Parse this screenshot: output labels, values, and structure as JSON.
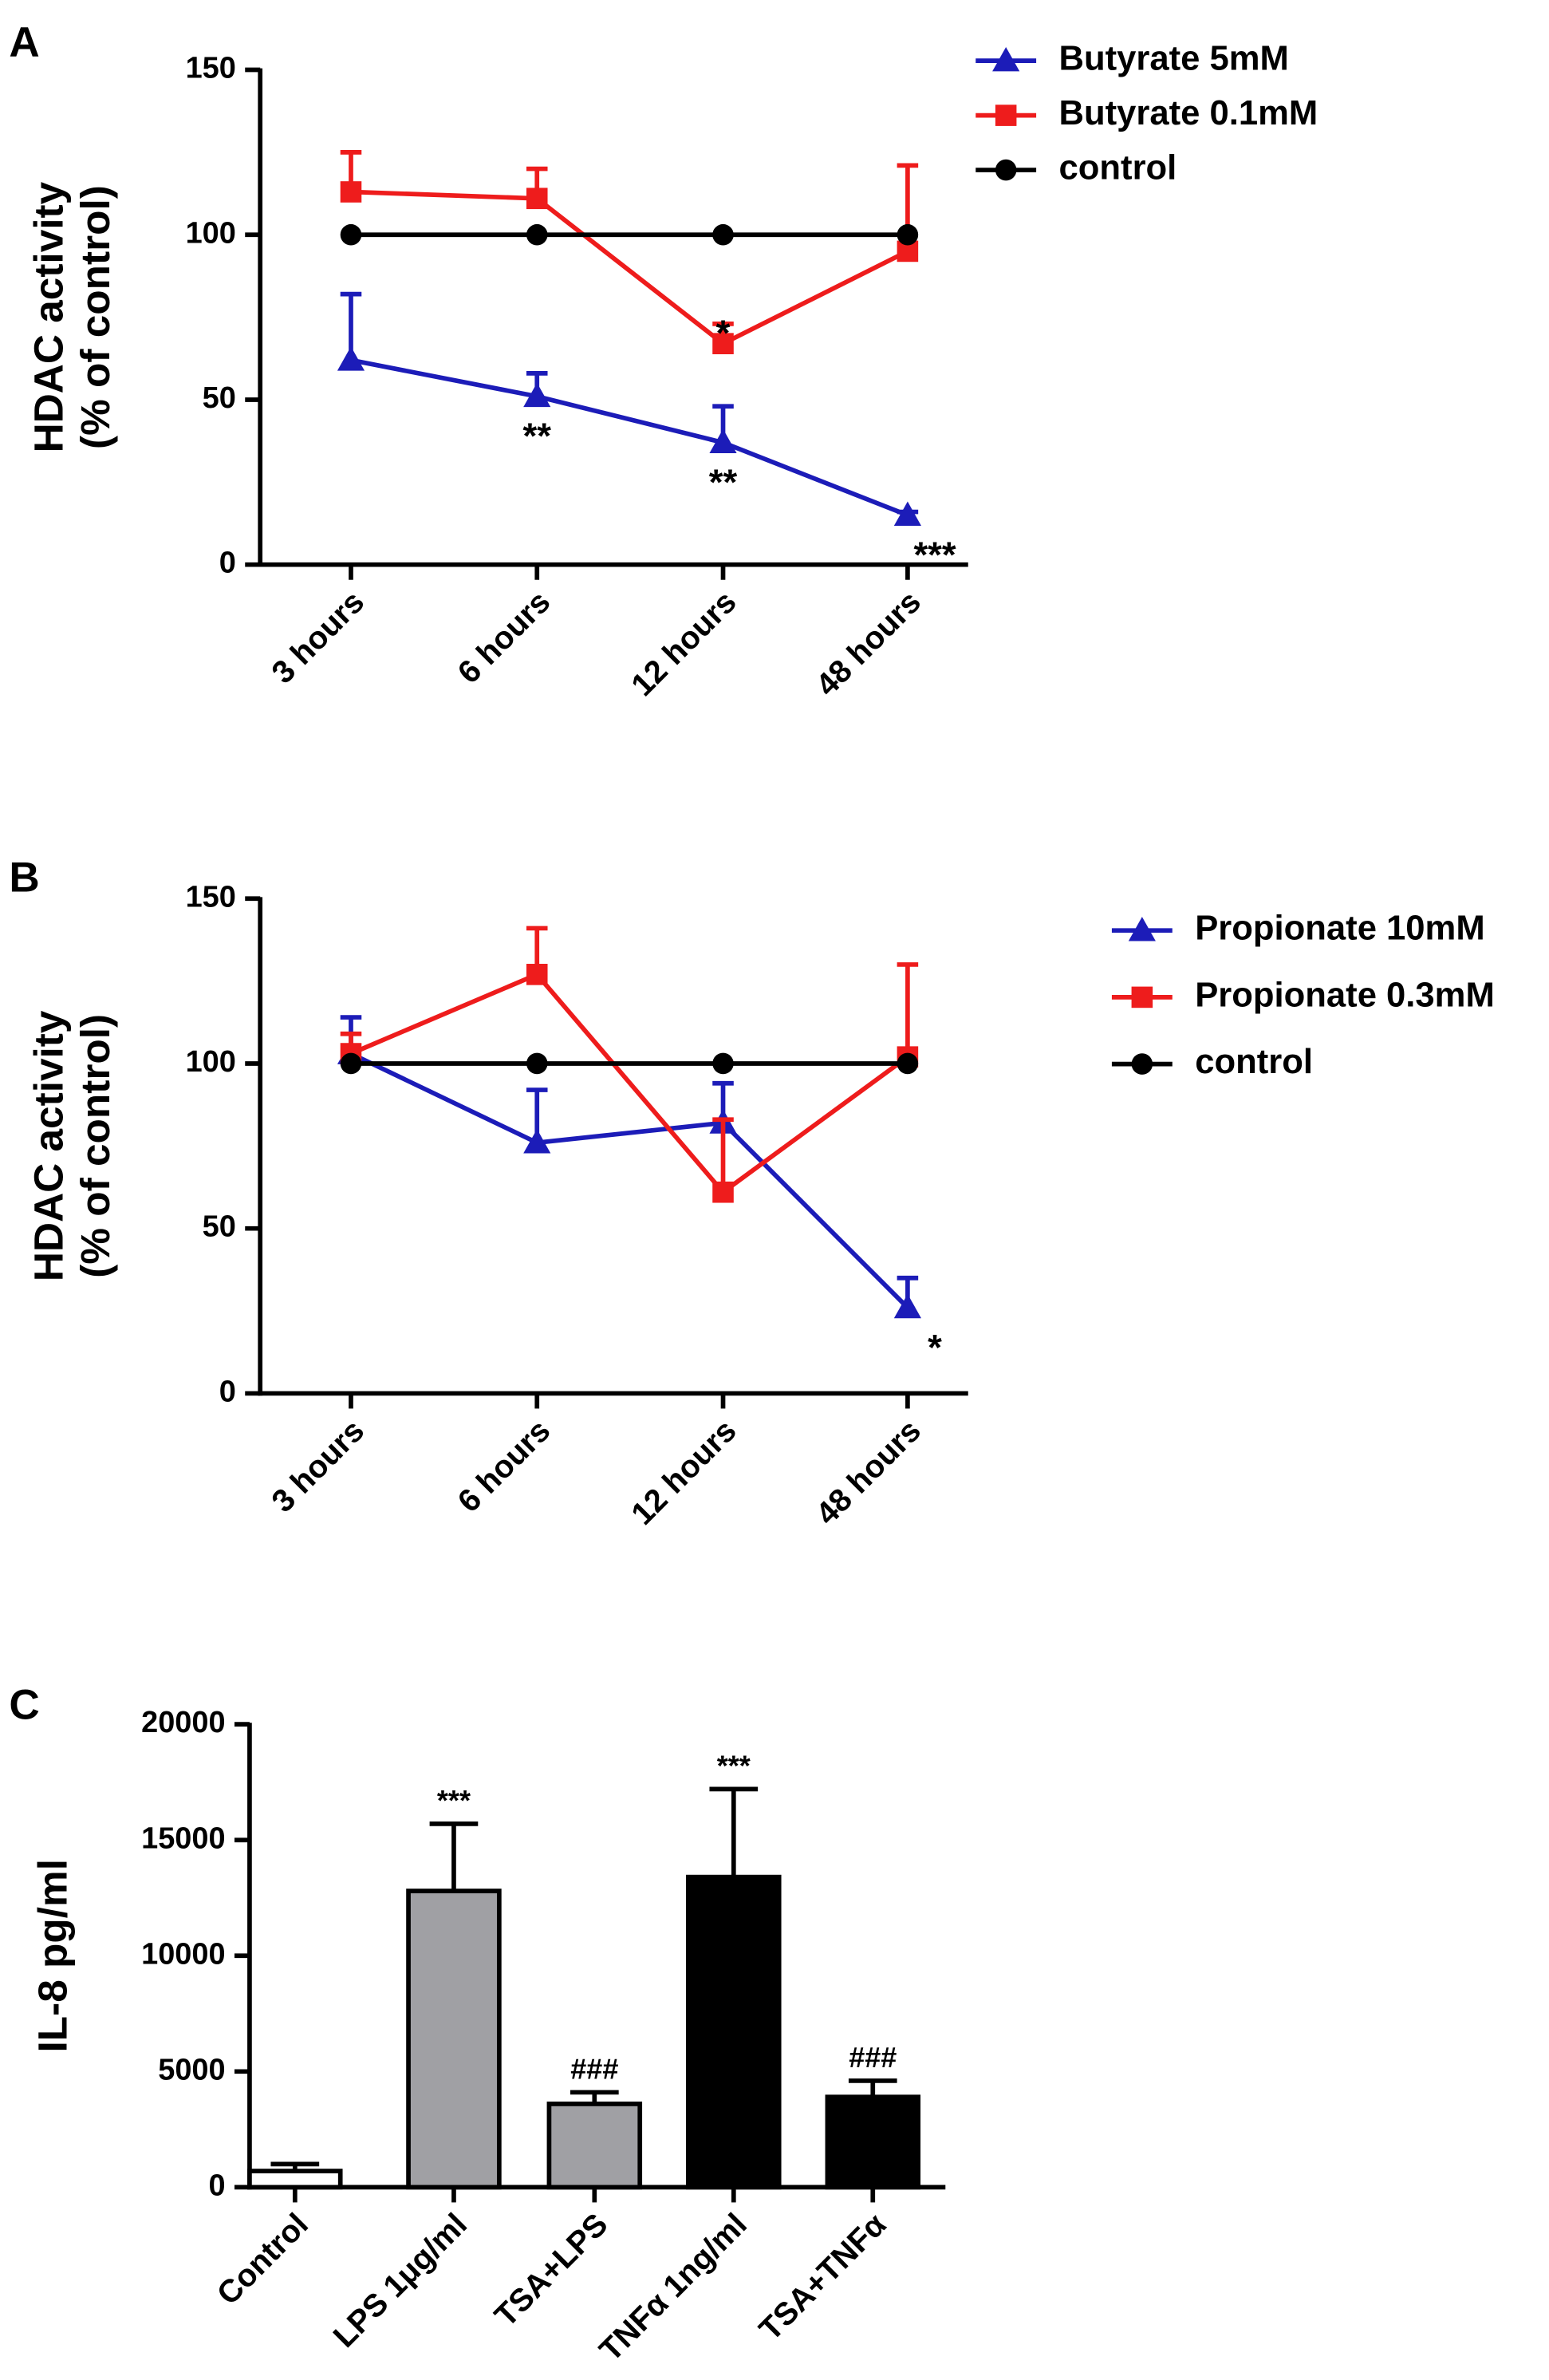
{
  "chart_data": [
    {
      "type": "line",
      "panel_label": "A",
      "ylabel": "HDAC activity\n(% of control)",
      "categories": [
        "3 hours",
        "6 hours",
        "12 hours",
        "48 hours"
      ],
      "ylim": [
        0,
        150
      ],
      "yticks": [
        0,
        50,
        100,
        150
      ],
      "series": [
        {
          "name": "Butyrate 5mM",
          "color": "#1c1cb8",
          "marker": "triangle",
          "values": [
            62,
            51,
            37,
            15
          ],
          "errors": [
            20,
            7,
            11,
            1
          ],
          "significance": [
            null,
            "**",
            "**",
            "***"
          ]
        },
        {
          "name": "Butyrate 0.1mM",
          "color": "#ee1c1c",
          "marker": "square",
          "values": [
            113,
            111,
            67,
            95
          ],
          "errors": [
            12,
            9,
            6,
            26
          ],
          "significance": [
            null,
            null,
            "*",
            null
          ]
        },
        {
          "name": "control",
          "color": "#000000",
          "marker": "circle",
          "values": [
            100,
            100,
            100,
            100
          ],
          "errors": [
            null,
            null,
            null,
            null
          ],
          "significance": [
            null,
            null,
            null,
            null
          ]
        }
      ]
    },
    {
      "type": "line",
      "panel_label": "B",
      "ylabel": "HDAC activity\n(% of control)",
      "categories": [
        "3 hours",
        "6 hours",
        "12 hours",
        "48 hours"
      ],
      "ylim": [
        0,
        150
      ],
      "yticks": [
        0,
        50,
        100,
        150
      ],
      "series": [
        {
          "name": "Propionate 10mM",
          "color": "#1c1cb8",
          "marker": "triangle",
          "values": [
            103,
            76,
            82,
            26
          ],
          "errors": [
            11,
            16,
            12,
            9
          ],
          "significance": [
            null,
            null,
            null,
            "*"
          ]
        },
        {
          "name": "Propionate 0.3mM",
          "color": "#ee1c1c",
          "marker": "square",
          "values": [
            103,
            127,
            61,
            102
          ],
          "errors": [
            6,
            14,
            22,
            28
          ],
          "significance": [
            null,
            null,
            null,
            null
          ]
        },
        {
          "name": "control",
          "color": "#000000",
          "marker": "circle",
          "values": [
            100,
            100,
            100,
            100
          ],
          "errors": [
            null,
            null,
            null,
            null
          ],
          "significance": [
            null,
            null,
            null,
            null
          ]
        }
      ]
    },
    {
      "type": "bar",
      "panel_label": "C",
      "ylabel": "IL-8 pg/ml",
      "categories": [
        "Control",
        "LPS 1μg/ml",
        "TSA+LPS",
        "TNFα 1ng/ml",
        "TSA+TNFα"
      ],
      "values": [
        700,
        12800,
        3600,
        13400,
        3900
      ],
      "errors": [
        300,
        2900,
        500,
        3800,
        700
      ],
      "colors": [
        "#ffffff",
        "#a0a0a4",
        "#a0a0a4",
        "#000000",
        "#000000"
      ],
      "significance": [
        null,
        "***",
        "###",
        "***",
        "###"
      ],
      "ylim": [
        0,
        20000
      ],
      "yticks": [
        0,
        5000,
        10000,
        15000,
        20000
      ]
    }
  ]
}
